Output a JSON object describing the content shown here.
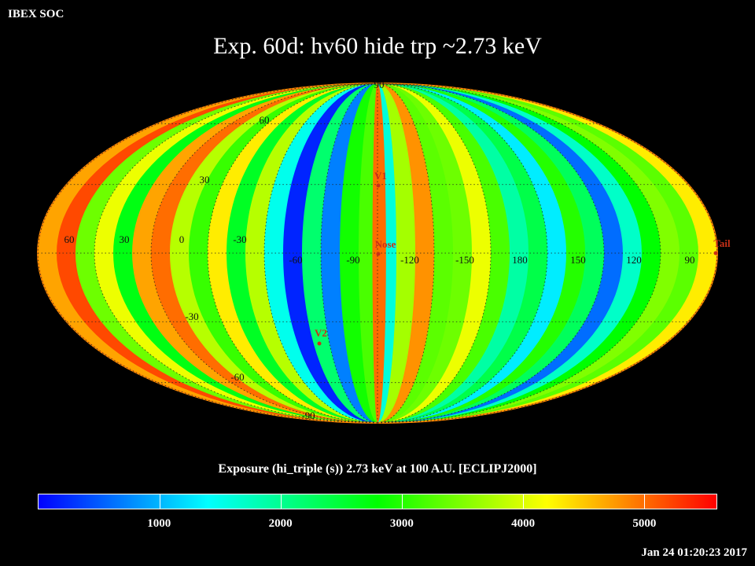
{
  "header": {
    "org": "IBEX SOC"
  },
  "title": "Exp.   60d: hv60 hide trp ~2.73 keV",
  "map": {
    "projection": "mollweide",
    "lon_labels": [
      "60",
      "30",
      "0",
      "-30",
      "-60",
      "-90",
      "-120",
      "-150",
      "180",
      "150",
      "120",
      "90"
    ],
    "lat_labels": [
      "90",
      "60",
      "30",
      "-30",
      "-60",
      "-90"
    ],
    "markers": [
      {
        "name": "V1",
        "color": "#c83018"
      },
      {
        "name": "Nose",
        "color": "#c83018"
      },
      {
        "name": "V2",
        "color": "#c83018"
      },
      {
        "name": "Tail",
        "color": "#c83018"
      }
    ],
    "exposure_bands": [
      4700,
      5200,
      3400,
      4100,
      2700,
      4700,
      5000,
      3800,
      3100,
      4300,
      2600,
      3800,
      1500,
      200,
      2200,
      700,
      2900,
      3200,
      1600,
      3700,
      4800,
      3300,
      3400,
      4100,
      3200,
      1900,
      2400,
      1300,
      3000,
      2300,
      600,
      1700,
      2800,
      3500,
      3300,
      4300
    ]
  },
  "colorbar": {
    "label": "Exposure (hi_triple (s))  2.73 keV at 100 A.U. [ECLIPJ2000]",
    "min": 0,
    "max": 5600,
    "ticks": [
      "1000",
      "2000",
      "3000",
      "4000",
      "5000"
    ],
    "colors": [
      "#0000ff",
      "#00ffff",
      "#00ff00",
      "#ffff00",
      "#ff0000"
    ]
  },
  "timestamp": "Jan 24 01:20:23 2017"
}
